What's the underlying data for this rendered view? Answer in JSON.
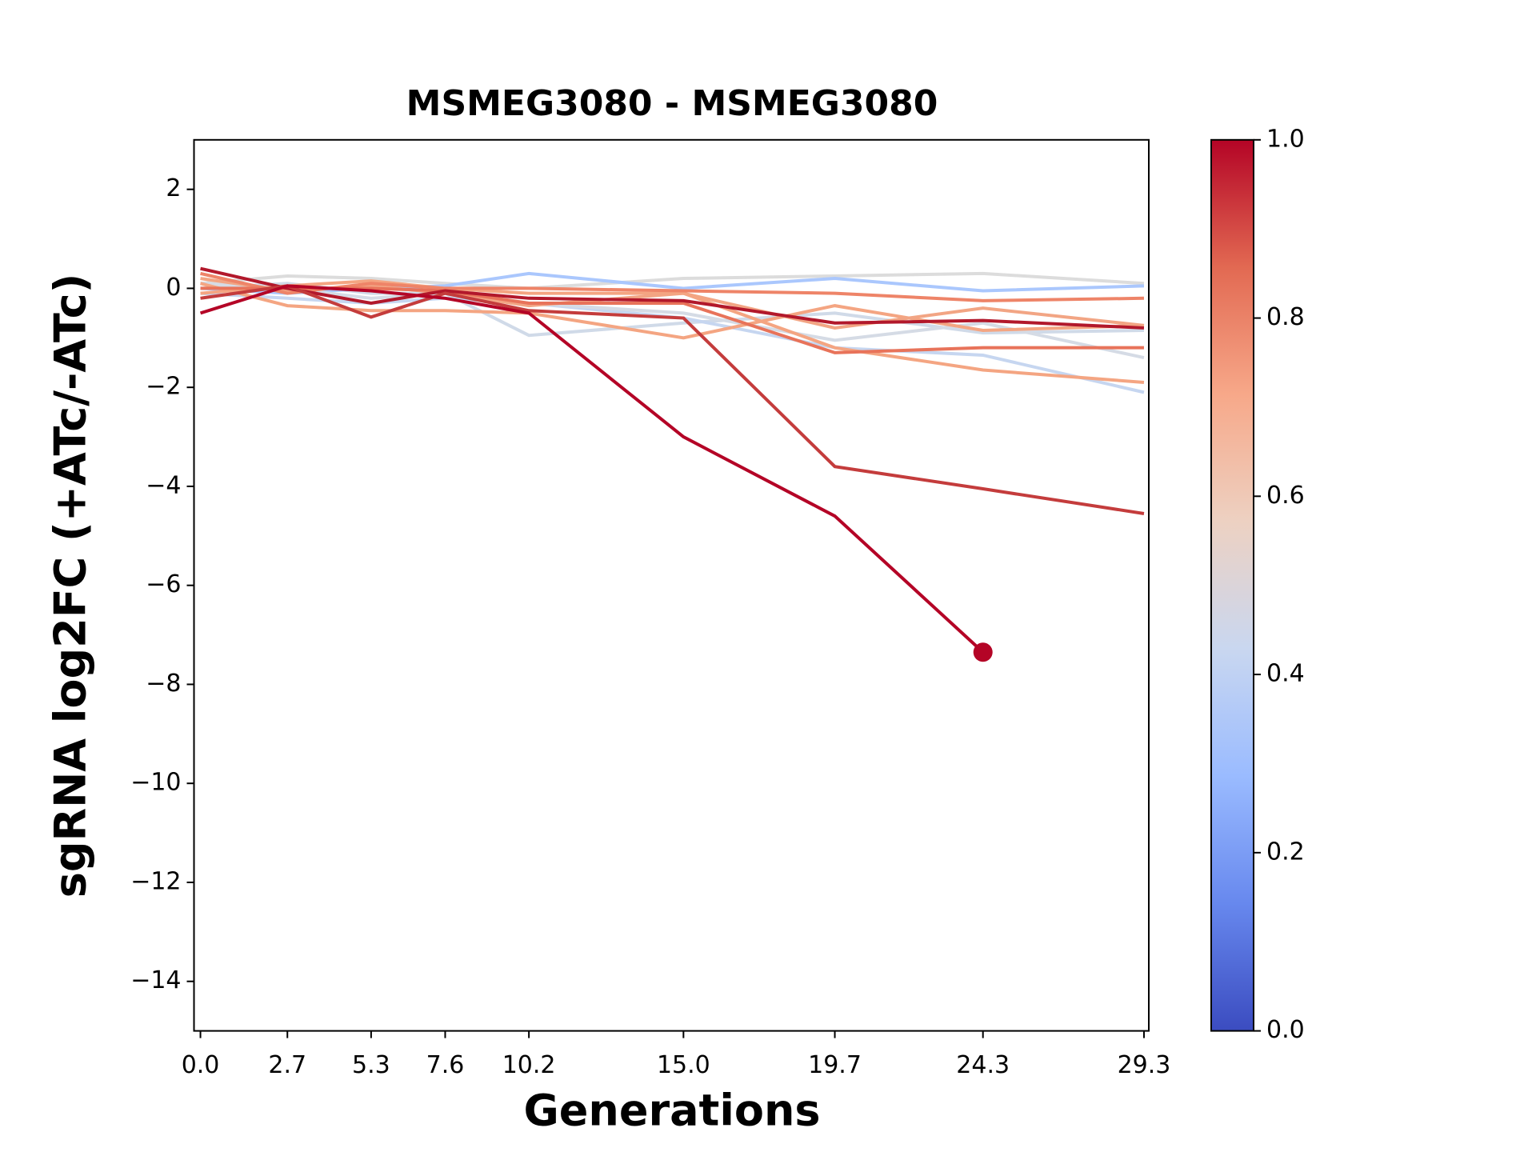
{
  "chart_data": {
    "type": "line",
    "title": "MSMEG3080 - MSMEG3080",
    "xlabel": "Generations",
    "ylabel": "sgRNA log2FC (+ATc/-ATc)",
    "x": [
      0,
      2.7,
      5.3,
      7.6,
      10.2,
      15,
      19.7,
      24.3,
      29.3
    ],
    "xlim": [
      -0.2,
      29.45
    ],
    "xticks": [
      {
        "value": 0,
        "label": "0.0"
      },
      2.7,
      5.3,
      7.6,
      10.2,
      {
        "value": 15,
        "label": "15.0"
      },
      19.7,
      24.3,
      29.3
    ],
    "ylim": [
      -15,
      3
    ],
    "yticks": [
      {
        "value": -14,
        "label": "−14"
      },
      {
        "value": -12,
        "label": "−12"
      },
      {
        "value": -10,
        "label": "−10"
      },
      {
        "value": -8,
        "label": "−8"
      },
      {
        "value": -6,
        "label": "−6"
      },
      {
        "value": -4,
        "label": "−4"
      },
      {
        "value": -2,
        "label": "−2"
      },
      0,
      2
    ],
    "series": [
      {
        "color": "#dcdcdc",
        "values": [
          0.1,
          0.25,
          0.2,
          0.1,
          0.0,
          0.2,
          0.25,
          0.3,
          0.1
        ]
      },
      {
        "color": "#d0dae8",
        "values": [
          0.0,
          0.1,
          -0.1,
          -0.1,
          -0.95,
          -0.7,
          -0.5,
          -0.9,
          -0.85
        ]
      },
      {
        "color": "#aac7fd",
        "values": [
          0.0,
          -0.1,
          0.0,
          0.05,
          0.3,
          0.0,
          0.2,
          -0.05,
          0.05
        ]
      },
      {
        "color": "#c6d6f0",
        "values": [
          -0.1,
          -0.2,
          -0.3,
          -0.2,
          -0.3,
          -0.6,
          -1.2,
          -1.35,
          -2.1
        ]
      },
      {
        "color": "#d5dbe5",
        "values": [
          0.1,
          0.0,
          -0.2,
          -0.1,
          -0.3,
          -0.5,
          -1.05,
          -0.7,
          -1.4
        ]
      },
      {
        "color": "#f4a582",
        "values": [
          0.1,
          -0.35,
          -0.45,
          -0.45,
          -0.5,
          -1.0,
          -0.35,
          -0.85,
          -0.75
        ]
      },
      {
        "color": "#f2a584",
        "values": [
          0.2,
          -0.05,
          0.05,
          -0.1,
          -0.35,
          -0.1,
          -0.8,
          -0.4,
          -0.75
        ]
      },
      {
        "color": "#f4a582",
        "values": [
          -0.1,
          0.05,
          0.15,
          0.0,
          -0.1,
          -0.1,
          -1.2,
          -1.65,
          -1.9
        ]
      },
      {
        "color": "#ee8468",
        "values": [
          0.3,
          -0.1,
          0.1,
          0.0,
          0.0,
          -0.05,
          -0.1,
          -0.25,
          -0.2
        ]
      },
      {
        "color": "#e8735a",
        "values": [
          0.0,
          0.0,
          0.0,
          -0.05,
          -0.3,
          -0.3,
          -1.3,
          -1.2,
          -1.2
        ]
      },
      {
        "color": "#b2182b",
        "values": [
          0.4,
          0.0,
          -0.3,
          -0.05,
          -0.2,
          -0.25,
          -0.7,
          -0.65,
          -0.8
        ]
      },
      {
        "color": "#c43c3c",
        "values": [
          -0.2,
          0.05,
          -0.58,
          -0.1,
          -0.45,
          -0.6,
          -3.6,
          -4.05,
          -4.55
        ]
      },
      {
        "color": "#b40426",
        "values": [
          -0.5,
          0.05,
          -0.05,
          -0.2,
          -0.5,
          -3.0,
          -4.6,
          -7.35,
          null
        ],
        "marker_last": true
      }
    ],
    "colorbar": {
      "lim": [
        0,
        1
      ],
      "ticks": [
        {
          "value": 0,
          "label": "0.0"
        },
        0.2,
        0.4,
        0.6,
        0.8,
        {
          "value": 1,
          "label": "1.0"
        }
      ],
      "colors": [
        "#3b4cc0",
        "#6788ee",
        "#9abbff",
        "#c9d7f0",
        "#edd1c2",
        "#f7a889",
        "#e26952",
        "#b40426"
      ]
    }
  }
}
